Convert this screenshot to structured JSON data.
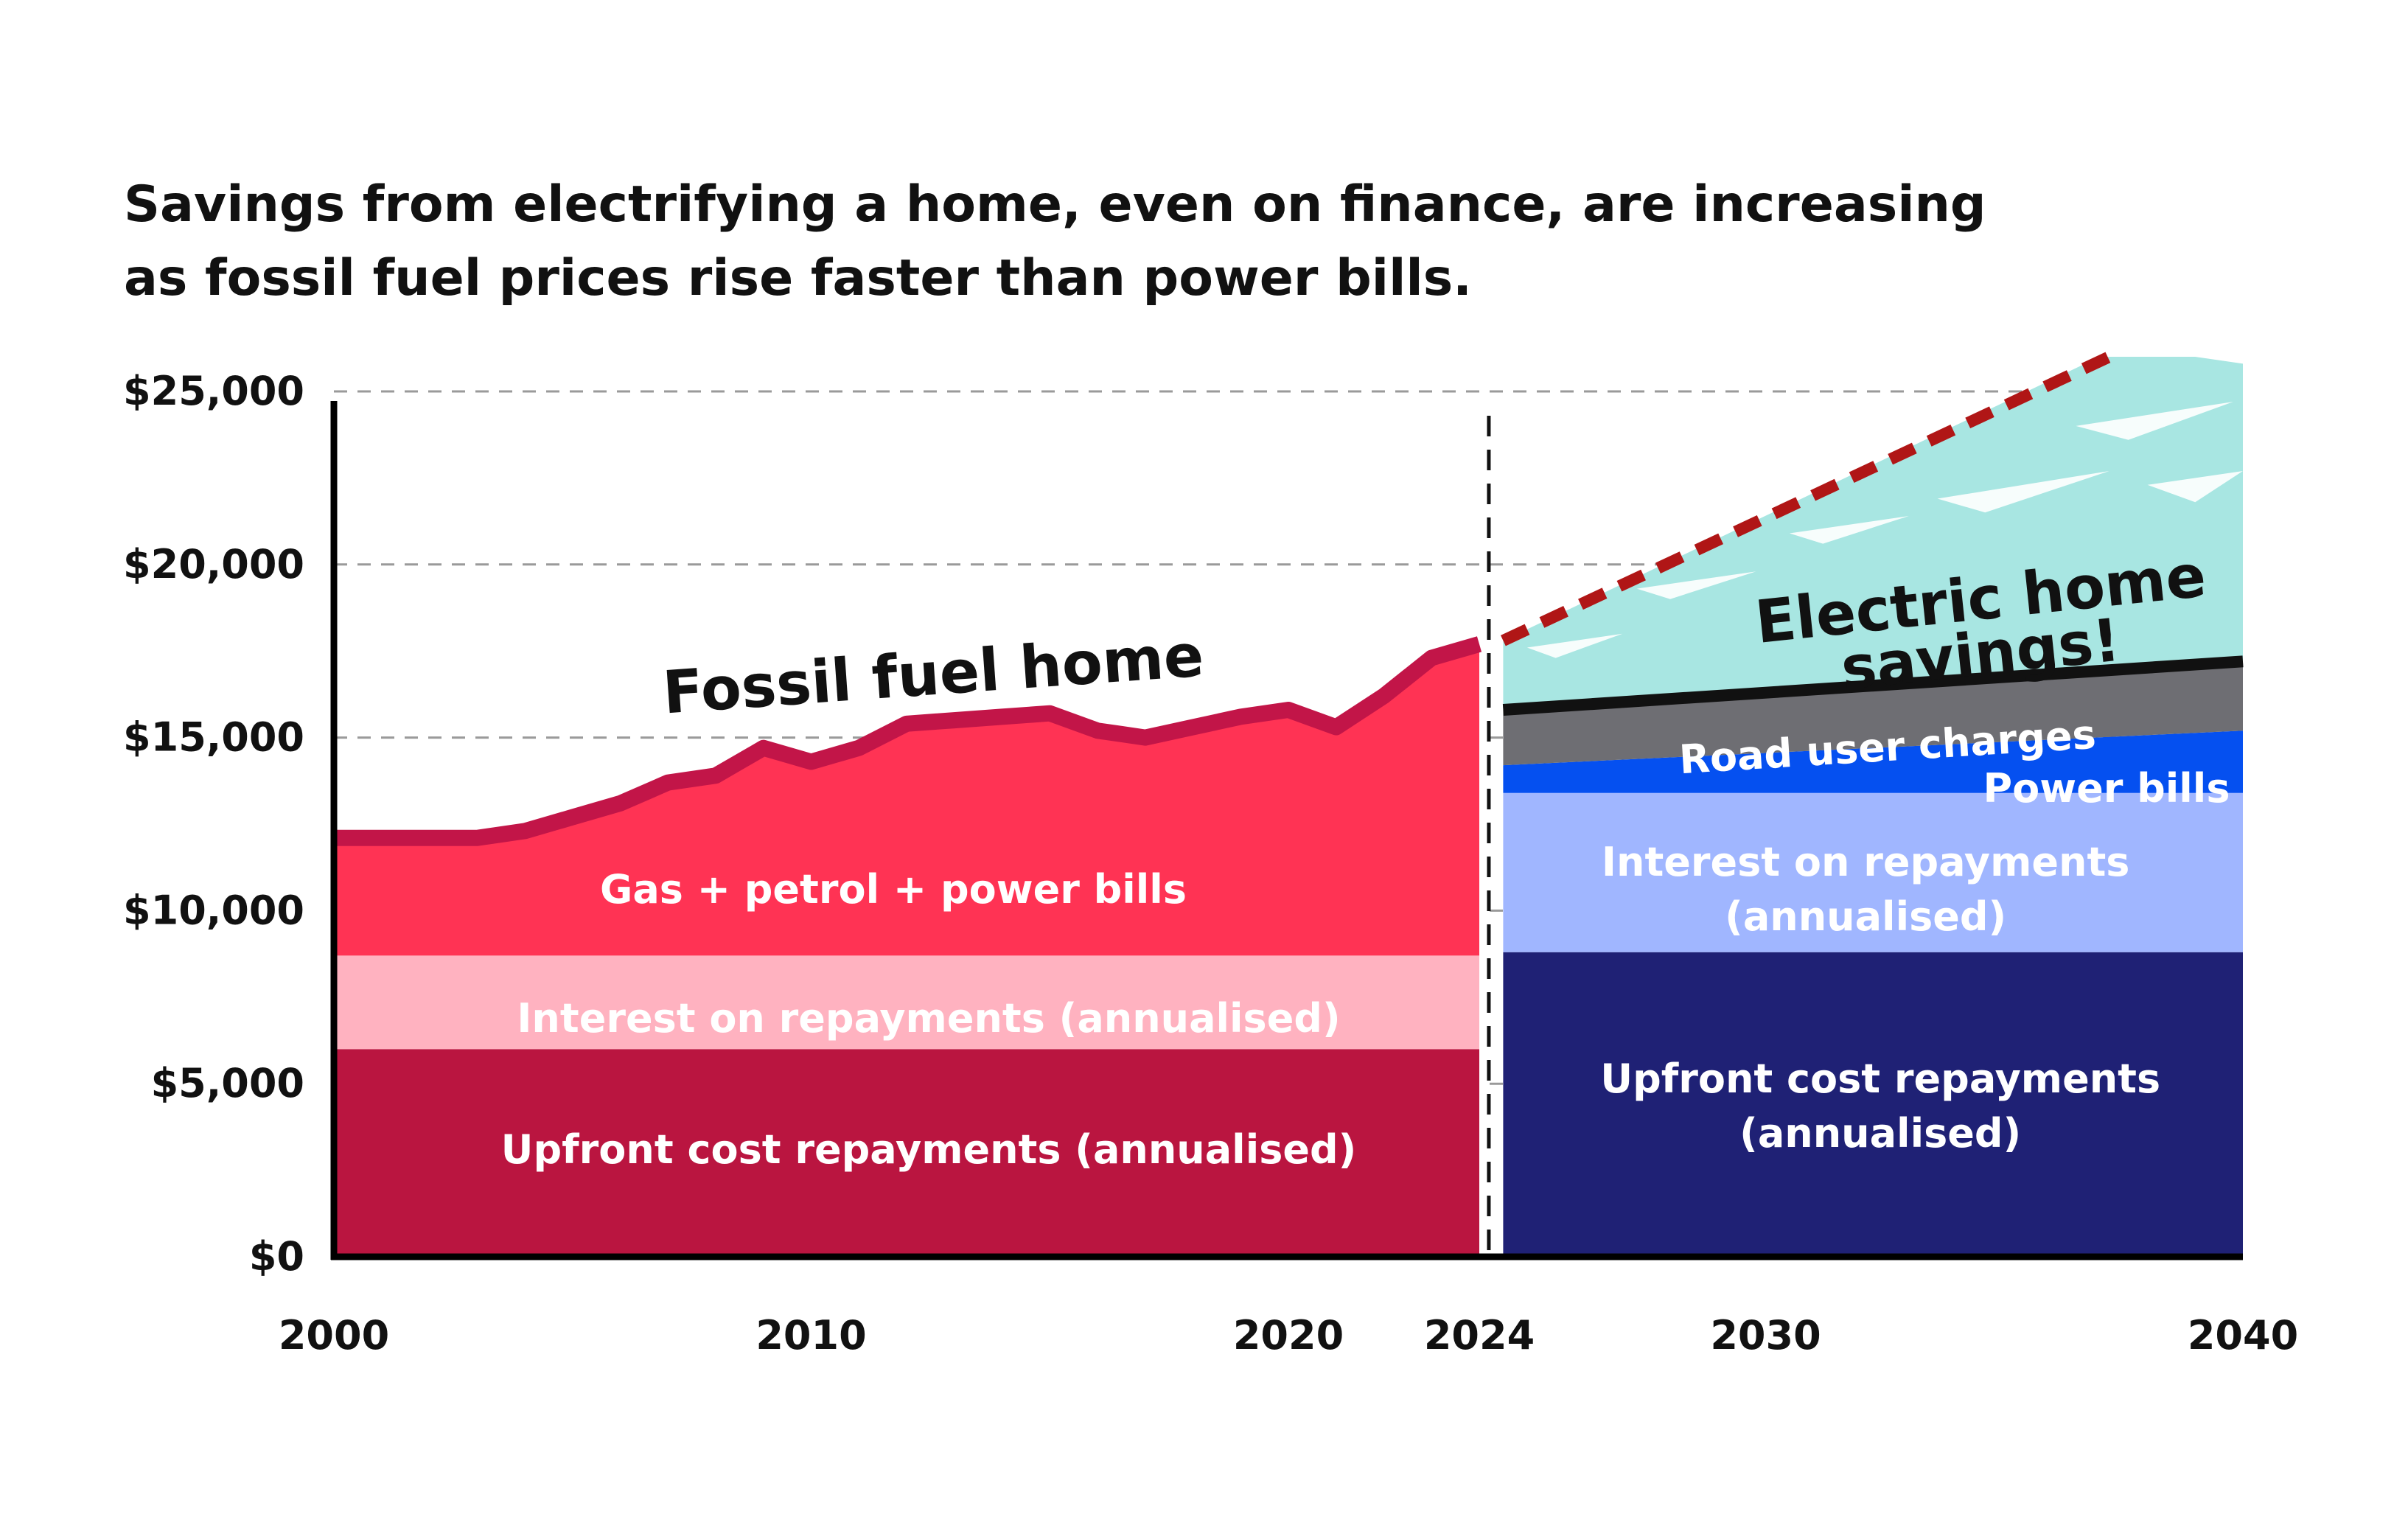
{
  "title_lines": [
    "Savings from electrifying a home, even on finance, are increasing",
    "as fossil fuel prices rise faster than power bills."
  ],
  "chart_data": {
    "type": "area",
    "xlim": [
      2000,
      2040
    ],
    "ylim": [
      0,
      26000
    ],
    "y_ticks": [
      0,
      5000,
      10000,
      15000,
      20000,
      25000
    ],
    "y_tick_labels": [
      "$0",
      "$5,000",
      "$10,000",
      "$15,000",
      "$20,000",
      "$25,000"
    ],
    "x_ticks": [
      2000,
      2010,
      2020,
      2024,
      2030,
      2040
    ],
    "x_tick_labels": [
      "2000",
      "2010",
      "2020",
      "2024",
      "2030",
      "2040"
    ],
    "divider_year": 2024.2,
    "fossil": {
      "label": "Fossil fuel home",
      "x": [
        2000,
        2001,
        2002,
        2003,
        2004,
        2005,
        2006,
        2007,
        2008,
        2009,
        2010,
        2011,
        2012,
        2013,
        2014,
        2015,
        2016,
        2017,
        2018,
        2019,
        2020,
        2021,
        2022,
        2023,
        2024
      ],
      "upfront": 6000,
      "interest": 2700,
      "total": [
        12100,
        12100,
        12100,
        12100,
        12300,
        12700,
        13100,
        13700,
        13900,
        14700,
        14300,
        14700,
        15400,
        15500,
        15600,
        15700,
        15200,
        15000,
        15300,
        15600,
        15800,
        15300,
        16200,
        17300,
        17300
      ],
      "total_end": 17700,
      "labels": {
        "upfront": "Upfront cost repayments (annualised)",
        "interest": "Interest on repayments (annualised)",
        "bills": "Gas + petrol + power bills"
      },
      "colors": {
        "upfront": "#ba1540",
        "interest": "#ffb2c0",
        "bills": "#ff3354",
        "edge": "#c21548"
      }
    },
    "electric": {
      "x_start": 2024.5,
      "x_end": 2040,
      "upfront": 8800,
      "interest_top": 13400,
      "power_top": [
        14200,
        15200
      ],
      "road_top": [
        15800,
        17200
      ],
      "fossil_projection": [
        17800,
        26000
      ],
      "labels": {
        "upfront": "Upfront cost repayments (annualised)",
        "interest": "Interest on repayments (annualised)",
        "power": "Power bills",
        "road": "Road user charges",
        "savings": "Electric home savings!"
      },
      "colors": {
        "upfront": "#1f2175",
        "interest": "#a0b6ff",
        "power": "#0550f0",
        "road": "#6e6e73",
        "savings": "#a8e6e2",
        "projection": "#b01616",
        "edge": "#111111"
      }
    }
  }
}
